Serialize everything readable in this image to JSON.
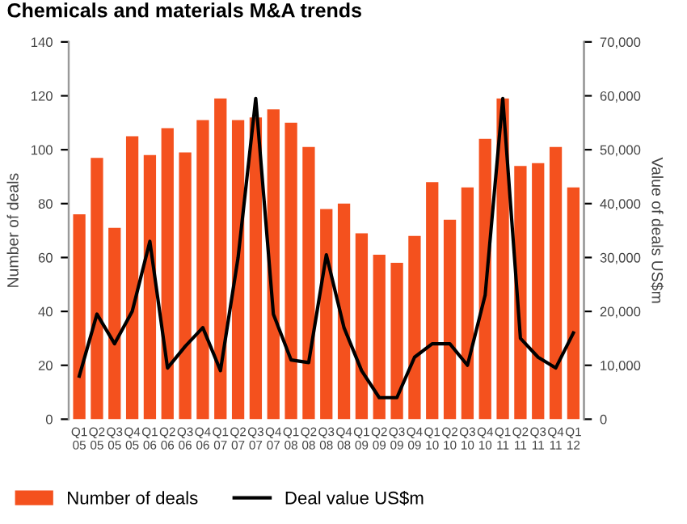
{
  "chart_data": {
    "type": "bar",
    "title": "Chemicals and materials M&A trends",
    "ylabel": "Number of deals",
    "y2label": "Value of deals US$m",
    "categories": [
      "Q1\n05",
      "Q2\n05",
      "Q3\n05",
      "Q4\n05",
      "Q1\n06",
      "Q2\n06",
      "Q3\n06",
      "Q4\n06",
      "Q1\n07",
      "Q2\n07",
      "Q3\n07",
      "Q4\n07",
      "Q1\n08",
      "Q2\n08",
      "Q3\n08",
      "Q4\n08",
      "Q1\n09",
      "Q2\n09",
      "Q3\n09",
      "Q4\n09",
      "Q1\n10",
      "Q2\n10",
      "Q3\n10",
      "Q4\n10",
      "Q1\n11",
      "Q2\n11",
      "Q3\n11",
      "Q4\n11",
      "Q1\n12"
    ],
    "series": [
      {
        "name": "Number of deals",
        "color": "#f4511e",
        "values": [
          76,
          97,
          71,
          105,
          98,
          108,
          99,
          111,
          119,
          111,
          112,
          115,
          110,
          101,
          78,
          80,
          69,
          61,
          58,
          68,
          88,
          74,
          86,
          104,
          119,
          94,
          95,
          101,
          86
        ]
      },
      {
        "name": "Deal value US$m",
        "type": "line",
        "axis": "y2",
        "color": "#000000",
        "values": [
          8000,
          19500,
          14000,
          20000,
          33000,
          9500,
          13500,
          17000,
          9000,
          30000,
          59500,
          19500,
          11000,
          10500,
          30500,
          17000,
          9000,
          4000,
          4000,
          11500,
          14000,
          14000,
          10000,
          23000,
          59500,
          15000,
          11500,
          9500,
          16000
        ]
      }
    ],
    "ylim": [
      0,
      140
    ],
    "yticks": [
      0,
      20,
      40,
      60,
      80,
      100,
      120,
      140
    ],
    "y2lim": [
      0,
      70000
    ],
    "y2ticks": [
      {
        "value": 0,
        "label": "0"
      },
      {
        "value": 10000,
        "label": "10,000"
      },
      {
        "value": 20000,
        "label": "20,000"
      },
      {
        "value": 30000,
        "label": "30,000"
      },
      {
        "value": 40000,
        "label": "40,000"
      },
      {
        "value": 50000,
        "label": "50,000"
      },
      {
        "value": 60000,
        "label": "60,000"
      },
      {
        "value": 70000,
        "label": "70,000"
      }
    ],
    "legend": "bottom left",
    "grid": false
  }
}
